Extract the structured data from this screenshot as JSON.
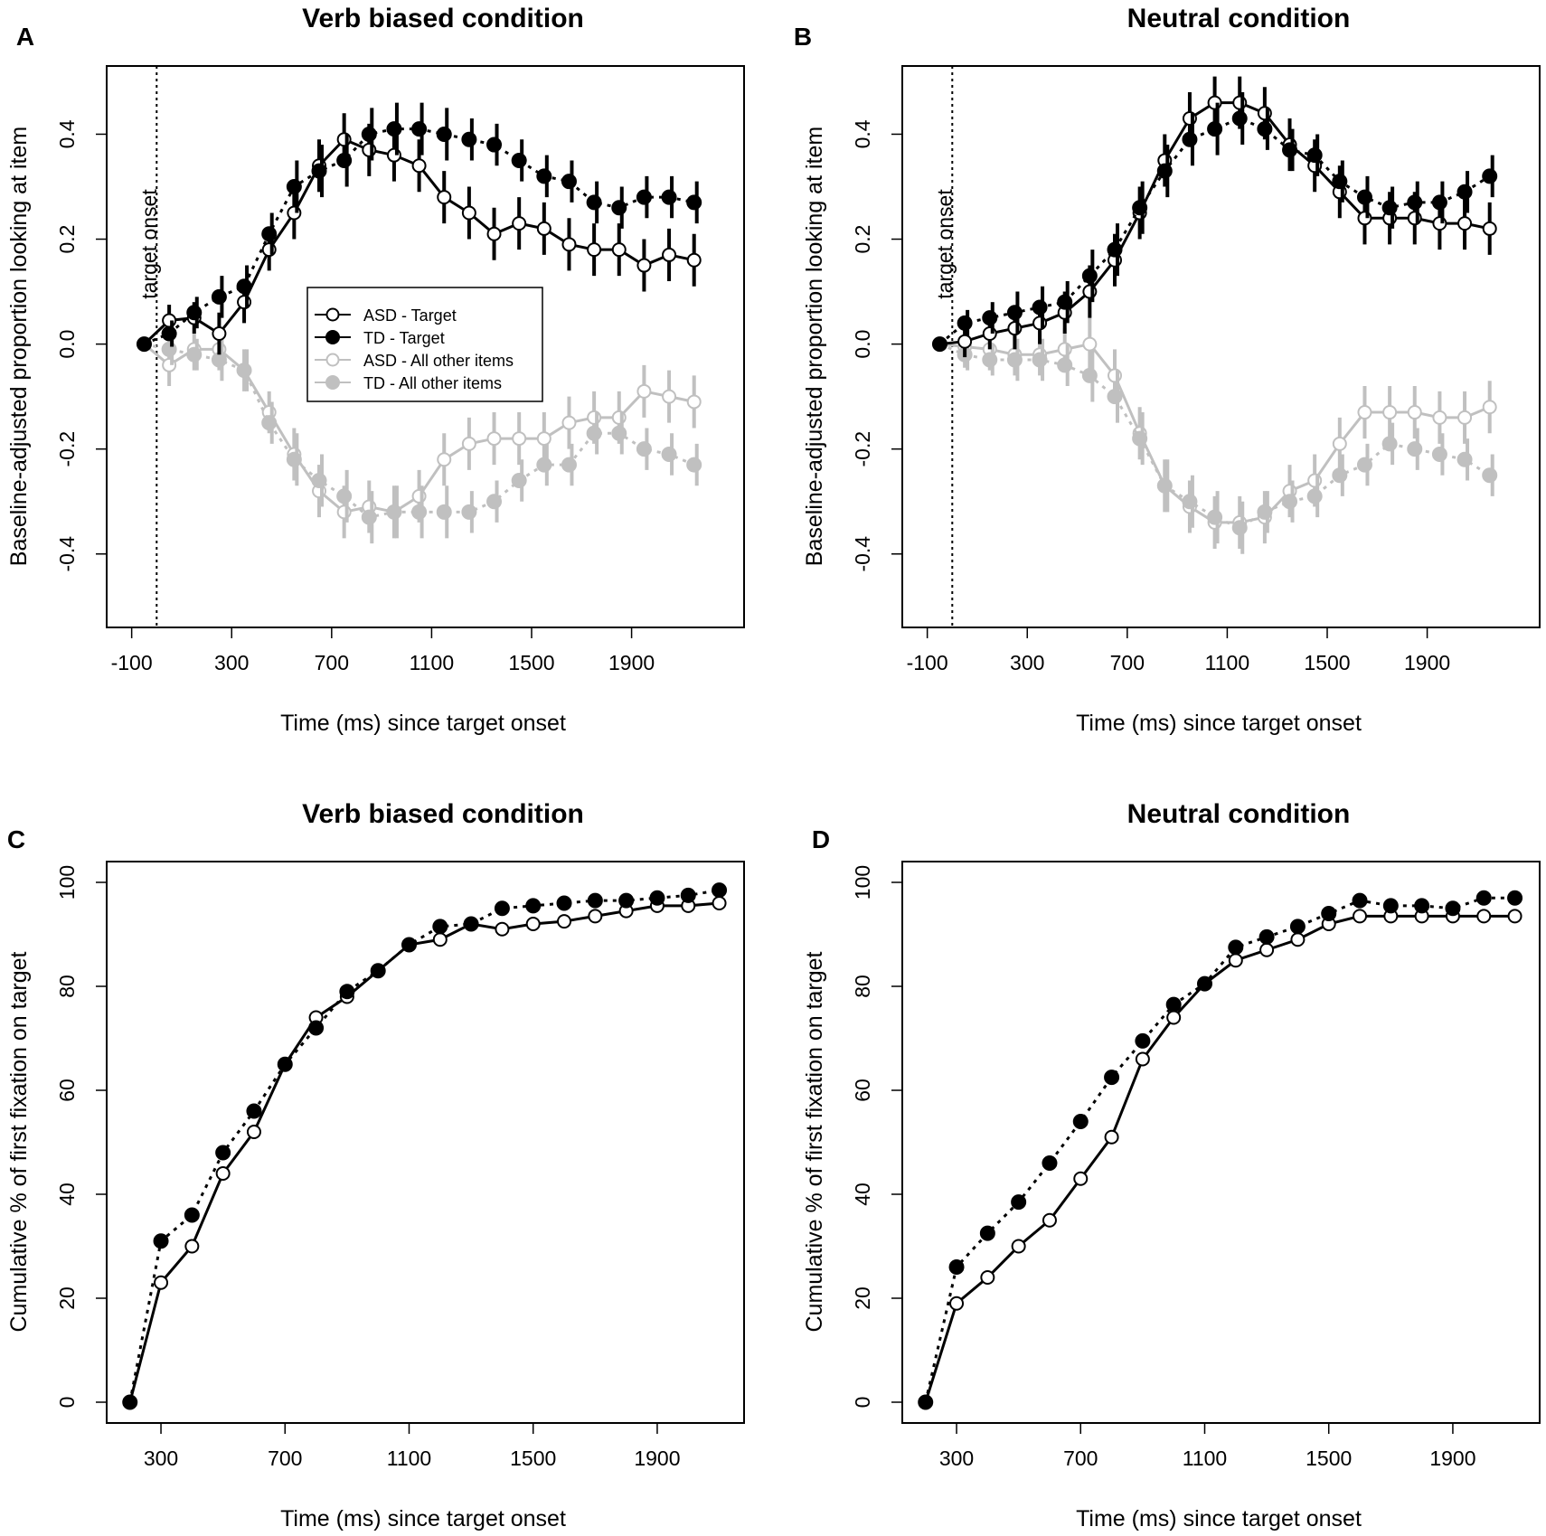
{
  "figure": {
    "panels": [
      {
        "label": "A",
        "title": "Verb biased condition"
      },
      {
        "label": "B",
        "title": "Neutral condition"
      },
      {
        "label": "C",
        "title": "Verb biased condition"
      },
      {
        "label": "D",
        "title": "Neutral condition"
      }
    ],
    "annotation": "target onset",
    "legend": [
      "ASD - Target",
      "TD - Target",
      "ASD - All other items",
      "TD -  All other items"
    ]
  },
  "colors": {
    "black": "#000000",
    "gray": "#c0c0c0",
    "background": "#ffffff"
  },
  "chart_data": [
    {
      "panel": "A",
      "type": "line",
      "title": "Verb biased condition",
      "xlabel": "Time (ms) since target onset",
      "ylabel": "Baseline-adjusted proportion looking at item",
      "xlim": [
        -200,
        2350
      ],
      "ylim": [
        -0.54,
        0.53
      ],
      "xticks": [
        -100,
        300,
        700,
        1100,
        1500,
        1900
      ],
      "xtick_labels": [
        "-100",
        "300",
        "700",
        "1100",
        "1500",
        "1900"
      ],
      "yticks": [
        -0.4,
        -0.2,
        0.0,
        0.2,
        0.4
      ],
      "ytick_labels": [
        "-0.4",
        "-0.2",
        "0.0",
        "0.2",
        "0.4"
      ],
      "vline": 0,
      "x": [
        -50,
        50,
        150,
        250,
        350,
        450,
        550,
        650,
        750,
        850,
        950,
        1050,
        1150,
        1250,
        1350,
        1450,
        1550,
        1650,
        1750,
        1850,
        1950,
        2050,
        2150
      ],
      "series": [
        {
          "name": "ASD - Target",
          "color": "#000000",
          "open": true,
          "dashed": false,
          "values": [
            0.0,
            0.045,
            0.05,
            0.02,
            0.08,
            0.18,
            0.25,
            0.34,
            0.39,
            0.37,
            0.36,
            0.34,
            0.28,
            0.25,
            0.21,
            0.23,
            0.22,
            0.19,
            0.18,
            0.18,
            0.15,
            0.17,
            0.16
          ],
          "errors": [
            0.0,
            0.03,
            0.03,
            0.04,
            0.04,
            0.04,
            0.05,
            0.05,
            0.05,
            0.05,
            0.05,
            0.05,
            0.05,
            0.05,
            0.05,
            0.05,
            0.05,
            0.05,
            0.05,
            0.05,
            0.05,
            0.05,
            0.05
          ]
        },
        {
          "name": "TD - Target",
          "color": "#000000",
          "open": false,
          "dashed": true,
          "values": [
            0.0,
            0.02,
            0.06,
            0.09,
            0.11,
            0.21,
            0.3,
            0.33,
            0.35,
            0.4,
            0.41,
            0.41,
            0.4,
            0.39,
            0.38,
            0.35,
            0.32,
            0.31,
            0.27,
            0.26,
            0.28,
            0.28,
            0.27
          ],
          "errors": [
            0.0,
            0.025,
            0.03,
            0.04,
            0.04,
            0.04,
            0.05,
            0.05,
            0.05,
            0.05,
            0.05,
            0.05,
            0.05,
            0.04,
            0.04,
            0.04,
            0.04,
            0.04,
            0.04,
            0.04,
            0.04,
            0.04,
            0.04
          ]
        },
        {
          "name": "ASD - All other items",
          "color": "#c0c0c0",
          "open": true,
          "dashed": false,
          "values": [
            0.0,
            -0.04,
            -0.01,
            -0.01,
            -0.05,
            -0.13,
            -0.21,
            -0.28,
            -0.32,
            -0.31,
            -0.32,
            -0.29,
            -0.22,
            -0.19,
            -0.18,
            -0.18,
            -0.18,
            -0.15,
            -0.14,
            -0.14,
            -0.09,
            -0.1,
            -0.11
          ],
          "errors": [
            0.0,
            0.04,
            0.04,
            0.04,
            0.04,
            0.04,
            0.05,
            0.05,
            0.05,
            0.05,
            0.05,
            0.05,
            0.05,
            0.05,
            0.05,
            0.05,
            0.05,
            0.05,
            0.05,
            0.05,
            0.05,
            0.05,
            0.05
          ]
        },
        {
          "name": "TD -  All other items",
          "color": "#c0c0c0",
          "open": false,
          "dashed": true,
          "values": [
            0.0,
            -0.01,
            -0.02,
            -0.03,
            -0.05,
            -0.15,
            -0.22,
            -0.26,
            -0.29,
            -0.33,
            -0.32,
            -0.32,
            -0.32,
            -0.32,
            -0.3,
            -0.26,
            -0.23,
            -0.23,
            -0.17,
            -0.17,
            -0.2,
            -0.21,
            -0.23
          ],
          "errors": [
            0.0,
            0.03,
            0.03,
            0.04,
            0.04,
            0.04,
            0.05,
            0.05,
            0.05,
            0.05,
            0.05,
            0.05,
            0.05,
            0.04,
            0.04,
            0.04,
            0.04,
            0.04,
            0.04,
            0.04,
            0.04,
            0.04,
            0.04
          ]
        }
      ]
    },
    {
      "panel": "B",
      "type": "line",
      "title": "Neutral condition",
      "xlabel": "Time (ms) since target onset",
      "ylabel": "Baseline-adjusted proportion looking at item",
      "xlim": [
        -200,
        2350
      ],
      "ylim": [
        -0.54,
        0.53
      ],
      "xticks": [
        -100,
        300,
        700,
        1100,
        1500,
        1900
      ],
      "xtick_labels": [
        "-100",
        "300",
        "700",
        "1100",
        "1500",
        "1900"
      ],
      "yticks": [
        -0.4,
        -0.2,
        0.0,
        0.2,
        0.4
      ],
      "ytick_labels": [
        "-0.4",
        "-0.2",
        "0.0",
        "0.2",
        "0.4"
      ],
      "vline": 0,
      "x": [
        -50,
        50,
        150,
        250,
        350,
        450,
        550,
        650,
        750,
        850,
        950,
        1050,
        1150,
        1250,
        1350,
        1450,
        1550,
        1650,
        1750,
        1850,
        1950,
        2050,
        2150
      ],
      "series": [
        {
          "name": "ASD - Target",
          "color": "#000000",
          "open": true,
          "dashed": false,
          "values": [
            0.0,
            0.005,
            0.02,
            0.03,
            0.04,
            0.06,
            0.1,
            0.16,
            0.25,
            0.35,
            0.43,
            0.46,
            0.46,
            0.44,
            0.38,
            0.34,
            0.29,
            0.24,
            0.24,
            0.24,
            0.23,
            0.23,
            0.22
          ],
          "errors": [
            0.0,
            0.03,
            0.03,
            0.04,
            0.04,
            0.04,
            0.05,
            0.05,
            0.05,
            0.05,
            0.05,
            0.05,
            0.05,
            0.05,
            0.05,
            0.05,
            0.05,
            0.05,
            0.05,
            0.05,
            0.05,
            0.05,
            0.05
          ]
        },
        {
          "name": "TD - Target",
          "color": "#000000",
          "open": false,
          "dashed": true,
          "values": [
            0.0,
            0.04,
            0.05,
            0.06,
            0.07,
            0.08,
            0.13,
            0.18,
            0.26,
            0.33,
            0.39,
            0.41,
            0.43,
            0.41,
            0.37,
            0.36,
            0.31,
            0.28,
            0.26,
            0.27,
            0.27,
            0.29,
            0.32
          ],
          "errors": [
            0.0,
            0.025,
            0.03,
            0.04,
            0.04,
            0.04,
            0.05,
            0.05,
            0.05,
            0.05,
            0.05,
            0.05,
            0.05,
            0.04,
            0.04,
            0.04,
            0.04,
            0.04,
            0.04,
            0.04,
            0.04,
            0.04,
            0.04
          ]
        },
        {
          "name": "ASD - All other items",
          "color": "#c0c0c0",
          "open": true,
          "dashed": false,
          "values": [
            0.0,
            -0.005,
            -0.01,
            -0.02,
            -0.02,
            -0.01,
            0.0,
            -0.06,
            -0.17,
            -0.27,
            -0.31,
            -0.34,
            -0.34,
            -0.33,
            -0.28,
            -0.26,
            -0.19,
            -0.13,
            -0.13,
            -0.13,
            -0.14,
            -0.14,
            -0.12
          ],
          "errors": [
            0.0,
            0.04,
            0.04,
            0.04,
            0.04,
            0.04,
            0.05,
            0.05,
            0.05,
            0.05,
            0.05,
            0.05,
            0.05,
            0.05,
            0.05,
            0.05,
            0.05,
            0.05,
            0.05,
            0.05,
            0.05,
            0.05,
            0.05
          ]
        },
        {
          "name": "TD -  All other items",
          "color": "#c0c0c0",
          "open": false,
          "dashed": true,
          "values": [
            0.0,
            -0.02,
            -0.03,
            -0.03,
            -0.03,
            -0.04,
            -0.06,
            -0.1,
            -0.18,
            -0.27,
            -0.3,
            -0.33,
            -0.35,
            -0.32,
            -0.3,
            -0.29,
            -0.25,
            -0.23,
            -0.19,
            -0.2,
            -0.21,
            -0.22,
            -0.25
          ],
          "errors": [
            0.0,
            0.03,
            0.03,
            0.04,
            0.04,
            0.04,
            0.05,
            0.05,
            0.05,
            0.05,
            0.05,
            0.05,
            0.05,
            0.04,
            0.04,
            0.04,
            0.04,
            0.04,
            0.04,
            0.04,
            0.04,
            0.04,
            0.04
          ]
        }
      ]
    },
    {
      "panel": "C",
      "type": "line",
      "title": "Verb biased condition",
      "xlabel": "Time (ms) since target onset",
      "ylabel": "Cumulative % of first fixation on target",
      "xlim": [
        125,
        2180
      ],
      "ylim": [
        -4,
        104
      ],
      "xticks": [
        300,
        700,
        1100,
        1500,
        1900
      ],
      "xtick_labels": [
        "300",
        "700",
        "1100",
        "1500",
        "1900"
      ],
      "yticks": [
        0,
        20,
        40,
        60,
        80,
        100
      ],
      "ytick_labels": [
        "0",
        "20",
        "40",
        "60",
        "80",
        "100"
      ],
      "x": [
        200,
        300,
        400,
        500,
        600,
        700,
        800,
        900,
        1000,
        1100,
        1200,
        1300,
        1400,
        1500,
        1600,
        1700,
        1800,
        1900,
        2000,
        2100
      ],
      "series": [
        {
          "name": "ASD - Target",
          "color": "#000000",
          "open": true,
          "dashed": false,
          "values": [
            0,
            23,
            30,
            44,
            52,
            65,
            74,
            78,
            83,
            88,
            89,
            92,
            91,
            92,
            92.5,
            93.5,
            94.5,
            95.5,
            95.5,
            96
          ]
        },
        {
          "name": "TD - Target",
          "color": "#000000",
          "open": false,
          "dashed": true,
          "values": [
            0,
            31,
            36,
            48,
            56,
            65,
            72,
            79,
            83,
            88,
            91.5,
            92,
            95,
            95.5,
            96,
            96.5,
            96.5,
            97,
            97.5,
            98.5
          ]
        }
      ]
    },
    {
      "panel": "D",
      "type": "line",
      "title": "Neutral condition",
      "xlabel": "Time (ms) since target onset",
      "ylabel": "Cumulative % of first fixation on target",
      "xlim": [
        125,
        2180
      ],
      "ylim": [
        -4,
        104
      ],
      "xticks": [
        300,
        700,
        1100,
        1500,
        1900
      ],
      "xtick_labels": [
        "300",
        "700",
        "1100",
        "1500",
        "1900"
      ],
      "yticks": [
        0,
        20,
        40,
        60,
        80,
        100
      ],
      "ytick_labels": [
        "0",
        "20",
        "40",
        "60",
        "80",
        "100"
      ],
      "x": [
        200,
        300,
        400,
        500,
        600,
        700,
        800,
        900,
        1000,
        1100,
        1200,
        1300,
        1400,
        1500,
        1600,
        1700,
        1800,
        1900,
        2000,
        2100
      ],
      "series": [
        {
          "name": "ASD - Target",
          "color": "#000000",
          "open": true,
          "dashed": false,
          "values": [
            0,
            19,
            24,
            30,
            35,
            43,
            51,
            66,
            74,
            80.5,
            85,
            87,
            89,
            92,
            93.5,
            93.5,
            93.5,
            93.5,
            93.5,
            93.5
          ]
        },
        {
          "name": "TD - Target",
          "color": "#000000",
          "open": false,
          "dashed": true,
          "values": [
            0,
            26,
            32.5,
            38.5,
            46,
            54,
            62.5,
            69.5,
            76.5,
            80.5,
            87.5,
            89.5,
            91.5,
            94,
            96.5,
            95.5,
            95.5,
            95,
            97,
            97
          ]
        }
      ]
    }
  ]
}
